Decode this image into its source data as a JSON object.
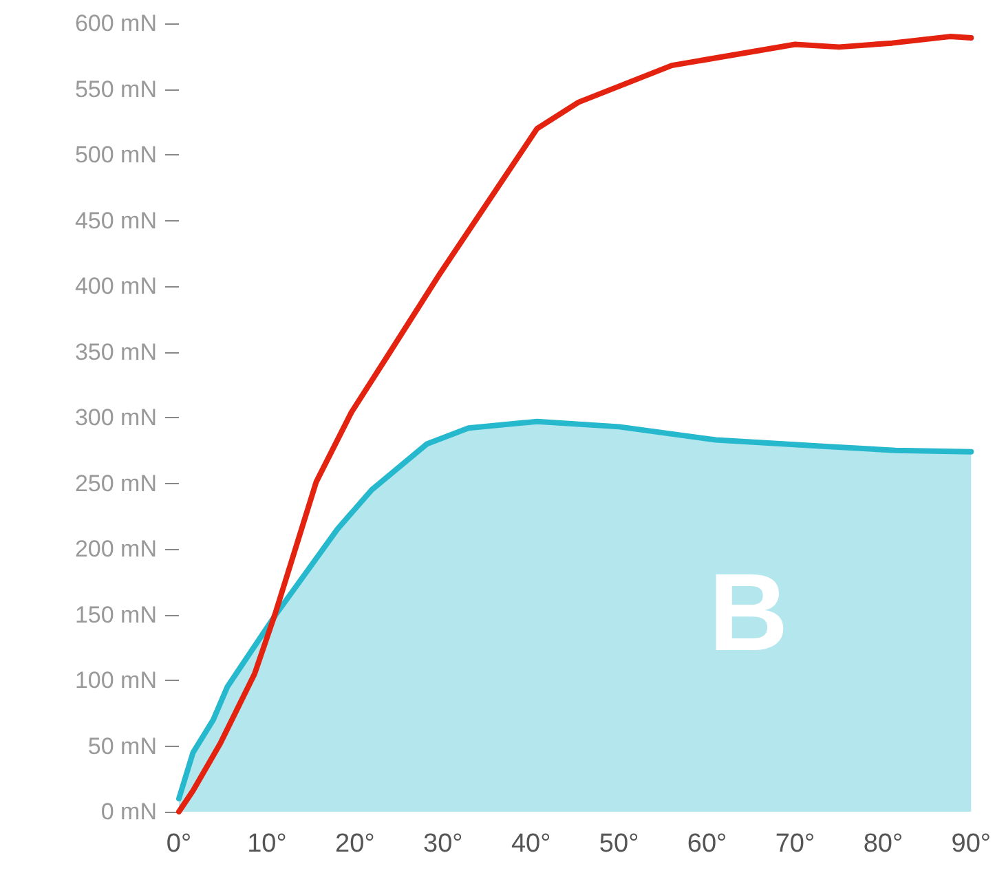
{
  "chart_data": {
    "type": "line",
    "annotations": [
      "B"
    ],
    "xlim": [
      0,
      90
    ],
    "ylim": [
      0,
      600
    ],
    "xticks": [
      {
        "value": 0,
        "label": "0°"
      },
      {
        "value": 10,
        "label": "10°"
      },
      {
        "value": 20,
        "label": "20°"
      },
      {
        "value": 30,
        "label": "30°"
      },
      {
        "value": 40,
        "label": "40°"
      },
      {
        "value": 50,
        "label": "50°"
      },
      {
        "value": 60,
        "label": "60°"
      },
      {
        "value": 70,
        "label": "70°"
      },
      {
        "value": 80,
        "label": "80°"
      },
      {
        "value": 90,
        "label": "90°"
      }
    ],
    "yticks": [
      {
        "value": 0,
        "label": "0 mN"
      },
      {
        "value": 50,
        "label": "50 mN"
      },
      {
        "value": 100,
        "label": "100 mN"
      },
      {
        "value": 150,
        "label": "150 mN"
      },
      {
        "value": 200,
        "label": "200 mN"
      },
      {
        "value": 250,
        "label": "250 mN"
      },
      {
        "value": 300,
        "label": "300 mN"
      },
      {
        "value": 350,
        "label": "350 mN"
      },
      {
        "value": 400,
        "label": "400 mN"
      },
      {
        "value": 450,
        "label": "450 mN"
      },
      {
        "value": 500,
        "label": "500 mN"
      },
      {
        "value": 550,
        "label": "550 mN"
      },
      {
        "value": 600,
        "label": "600 mN"
      }
    ],
    "grid": false,
    "marker": "none",
    "line_style": "solid",
    "series": [
      {
        "type": "area",
        "color": "#26b8cc",
        "x": [
          0,
          1.6,
          3.9,
          5.5,
          11,
          18,
          21.9,
          28.2,
          32.9,
          40.7,
          50,
          61,
          73.5,
          81.4,
          90
        ],
        "values": [
          10,
          45,
          70,
          95,
          150,
          215,
          245,
          280,
          292,
          297,
          293,
          283,
          278,
          275,
          274
        ]
      },
      {
        "color": "#e3220f",
        "x": [
          0,
          1.6,
          4.7,
          8.6,
          11,
          15.6,
          19.6,
          24,
          29.7,
          40.7,
          45.4,
          56,
          70,
          75,
          81,
          87.6,
          90
        ],
        "values": [
          0,
          16,
          52,
          105,
          152,
          251,
          304,
          350,
          410,
          520,
          540,
          568,
          584,
          582,
          585,
          590,
          589
        ]
      }
    ]
  }
}
